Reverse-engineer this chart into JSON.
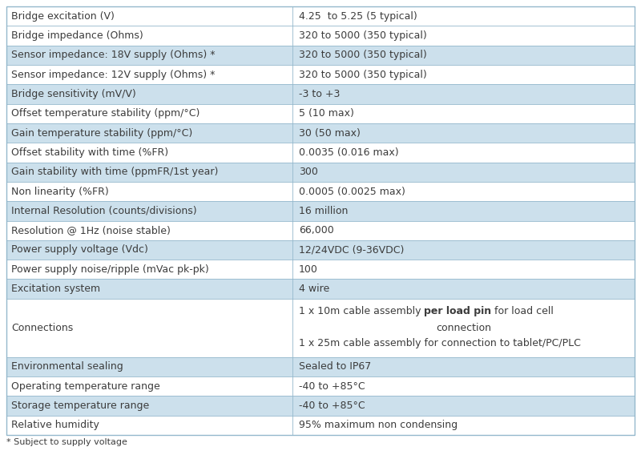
{
  "rows": [
    {
      "label": "Bridge excitation (V)",
      "value": "4.25  to 5.25 (5 typical)",
      "shaded": false
    },
    {
      "label": "Bridge impedance (Ohms)",
      "value": "320 to 5000 (350 typical)",
      "shaded": false
    },
    {
      "label": "Sensor impedance: 18V supply (Ohms) *",
      "value": "320 to 5000 (350 typical)",
      "shaded": true
    },
    {
      "label": "Sensor impedance: 12V supply (Ohms) *",
      "value": "320 to 5000 (350 typical)",
      "shaded": false
    },
    {
      "label": "Bridge sensitivity (mV/V)",
      "value": "-3 to +3",
      "shaded": true
    },
    {
      "label": "Offset temperature stability (ppm/°C)",
      "value": "5 (10 max)",
      "shaded": false
    },
    {
      "label": "Gain temperature stability (ppm/°C)",
      "value": "30 (50 max)",
      "shaded": true
    },
    {
      "label": "Offset stability with time (%FR)",
      "value": "0.0035 (0.016 max)",
      "shaded": false
    },
    {
      "label": "Gain stability with time (ppmFR/1st year)",
      "value": "300",
      "shaded": true
    },
    {
      "label": "Non linearity (%FR)",
      "value": "0.0005 (0.0025 max)",
      "shaded": false
    },
    {
      "label": "Internal Resolution (counts/divisions)",
      "value": "16 million",
      "shaded": true
    },
    {
      "label": "Resolution @ 1Hz (noise stable)",
      "value": "66,000",
      "shaded": false
    },
    {
      "label": "Power supply voltage (Vdc)",
      "value": "12/24VDC (9-36VDC)",
      "shaded": true
    },
    {
      "label": "Power supply noise/ripple (mVac pk-pk)",
      "value": "100",
      "shaded": false
    },
    {
      "label": "Excitation system",
      "value": "4 wire",
      "shaded": true
    },
    {
      "label": "Connections",
      "value": "",
      "shaded": false
    },
    {
      "label": "Environmental sealing",
      "value": "Sealed to IP67",
      "shaded": true
    },
    {
      "label": "Operating temperature range",
      "value": "-40 to +85°C",
      "shaded": false
    },
    {
      "label": "Storage temperature range",
      "value": "-40 to +85°C",
      "shaded": true
    },
    {
      "label": "Relative humidity",
      "value": "95% maximum non condensing",
      "shaded": false
    }
  ],
  "shaded_color": "#cce0ec",
  "white_color": "#ffffff",
  "border_color": "#94b8cc",
  "text_color": "#3c3c3c",
  "footnote": "* Subject to supply voltage",
  "col_split": 0.455,
  "connections_idx": 15,
  "conn_normal1": "1 x 10m cable assembly ",
  "conn_bold": "per load pin",
  "conn_normal2": " for load cell",
  "conn_line2": "connection",
  "conn_line3": "1 x 25m cable assembly for connection to tablet/PC/PLC",
  "font_size": 9.0,
  "footnote_size": 8.0
}
